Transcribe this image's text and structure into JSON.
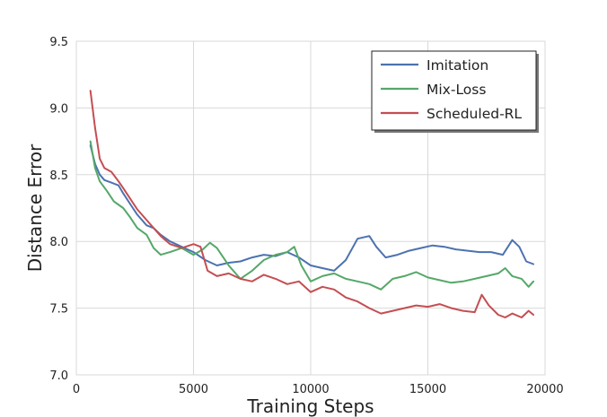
{
  "chart_data": {
    "type": "line",
    "title": "",
    "xlabel": "Training Steps",
    "ylabel": "Distance Error",
    "xlim": [
      0,
      20000
    ],
    "ylim": [
      7.0,
      9.5
    ],
    "xticks": [
      0,
      5000,
      10000,
      15000,
      20000
    ],
    "yticks": [
      7.0,
      7.5,
      8.0,
      8.5,
      9.0,
      9.5
    ],
    "xtick_labels": [
      "0",
      "5000",
      "10000",
      "15000",
      "20000"
    ],
    "ytick_labels": [
      "7.0",
      "7.5",
      "8.0",
      "8.5",
      "9.0",
      "9.5"
    ],
    "grid": true,
    "legend_position": "top-right",
    "series": [
      {
        "name": "Imitation",
        "color": "#4c72b0",
        "x": [
          600,
          800,
          1000,
          1200,
          1500,
          1800,
          2000,
          2300,
          2600,
          3000,
          3300,
          3600,
          4000,
          4500,
          5000,
          5500,
          6000,
          6500,
          7000,
          7500,
          8000,
          8500,
          9000,
          9500,
          10000,
          10500,
          11000,
          11500,
          12000,
          12500,
          12800,
          13200,
          13700,
          14200,
          14700,
          15200,
          15700,
          16200,
          16700,
          17200,
          17700,
          18200,
          18600,
          18900,
          19200,
          19500
        ],
        "y": [
          8.72,
          8.58,
          8.5,
          8.46,
          8.44,
          8.42,
          8.36,
          8.28,
          8.2,
          8.12,
          8.1,
          8.05,
          8.0,
          7.96,
          7.92,
          7.86,
          7.82,
          7.84,
          7.85,
          7.88,
          7.9,
          7.89,
          7.92,
          7.88,
          7.82,
          7.8,
          7.78,
          7.86,
          8.02,
          8.04,
          7.96,
          7.88,
          7.9,
          7.93,
          7.95,
          7.97,
          7.96,
          7.94,
          7.93,
          7.92,
          7.92,
          7.9,
          8.01,
          7.96,
          7.85,
          7.83
        ]
      },
      {
        "name": "Mix-Loss",
        "color": "#55a868",
        "x": [
          600,
          800,
          1000,
          1300,
          1600,
          2000,
          2300,
          2600,
          3000,
          3300,
          3600,
          4000,
          4500,
          5000,
          5400,
          5700,
          6000,
          6500,
          7000,
          7500,
          8000,
          8500,
          9000,
          9300,
          9600,
          10000,
          10500,
          11000,
          11500,
          12000,
          12500,
          13000,
          13500,
          14000,
          14500,
          15000,
          15500,
          16000,
          16500,
          17000,
          17500,
          18000,
          18300,
          18600,
          19000,
          19300,
          19500
        ],
        "y": [
          8.75,
          8.55,
          8.45,
          8.38,
          8.3,
          8.25,
          8.18,
          8.1,
          8.05,
          7.95,
          7.9,
          7.92,
          7.95,
          7.9,
          7.94,
          7.99,
          7.95,
          7.82,
          7.72,
          7.78,
          7.86,
          7.9,
          7.92,
          7.96,
          7.82,
          7.7,
          7.74,
          7.76,
          7.72,
          7.7,
          7.68,
          7.64,
          7.72,
          7.74,
          7.77,
          7.73,
          7.71,
          7.69,
          7.7,
          7.72,
          7.74,
          7.76,
          7.8,
          7.74,
          7.72,
          7.66,
          7.7
        ]
      },
      {
        "name": "Scheduled-RL",
        "color": "#c44e52",
        "x": [
          600,
          800,
          1000,
          1200,
          1500,
          1800,
          2000,
          2300,
          2600,
          3000,
          3300,
          3600,
          4000,
          4500,
          5000,
          5300,
          5600,
          6000,
          6500,
          7000,
          7500,
          8000,
          8500,
          9000,
          9500,
          10000,
          10500,
          11000,
          11500,
          12000,
          12500,
          13000,
          13500,
          14000,
          14500,
          15000,
          15500,
          16000,
          16500,
          17000,
          17300,
          17600,
          18000,
          18300,
          18600,
          19000,
          19300,
          19500
        ],
        "y": [
          9.13,
          8.85,
          8.62,
          8.55,
          8.52,
          8.45,
          8.4,
          8.32,
          8.24,
          8.16,
          8.1,
          8.04,
          7.98,
          7.95,
          7.98,
          7.96,
          7.78,
          7.74,
          7.76,
          7.72,
          7.7,
          7.75,
          7.72,
          7.68,
          7.7,
          7.62,
          7.66,
          7.64,
          7.58,
          7.55,
          7.5,
          7.46,
          7.48,
          7.5,
          7.52,
          7.51,
          7.53,
          7.5,
          7.48,
          7.47,
          7.6,
          7.52,
          7.45,
          7.43,
          7.46,
          7.43,
          7.48,
          7.45
        ]
      }
    ]
  }
}
